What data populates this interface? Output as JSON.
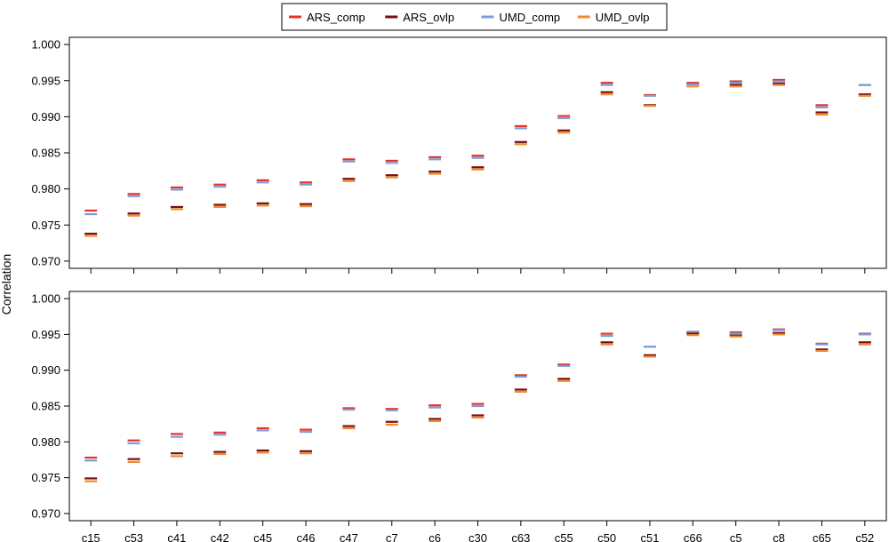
{
  "chart_data": {
    "type": "scatter",
    "ylabel": "Correlation",
    "legend_position": "top-center",
    "categories": [
      "c15",
      "c53",
      "c41",
      "c42",
      "c45",
      "c46",
      "c47",
      "c7",
      "c6",
      "c30",
      "c63",
      "c55",
      "c50",
      "c51",
      "c66",
      "c5",
      "c8",
      "c65",
      "c52"
    ],
    "series_styles": [
      {
        "name": "ARS_comp",
        "color": "#e8312b"
      },
      {
        "name": "ARS_ovlp",
        "color": "#7a0e0e"
      },
      {
        "name": "UMD_comp",
        "color": "#7b9fd9"
      },
      {
        "name": "UMD_ovlp",
        "color": "#f28a2e"
      }
    ],
    "panels": [
      {
        "ylim": [
          0.969,
          1.001
        ],
        "yticks": [
          "0.970",
          "0.975",
          "0.980",
          "0.985",
          "0.990",
          "0.995",
          "1.000"
        ],
        "series": [
          {
            "name": "ARS_comp",
            "values": [
              0.977,
              0.9793,
              0.9802,
              0.9806,
              0.9812,
              0.9809,
              0.9841,
              0.9839,
              0.9844,
              0.9846,
              0.9887,
              0.9901,
              0.9947,
              0.993,
              0.9947,
              0.9949,
              0.9951,
              0.9916,
              0.9944
            ]
          },
          {
            "name": "ARS_ovlp",
            "values": [
              0.9738,
              0.9766,
              0.9775,
              0.9778,
              0.978,
              0.9779,
              0.9814,
              0.9819,
              0.9824,
              0.983,
              0.9865,
              0.9881,
              0.9934,
              0.9916,
              0.9945,
              0.9944,
              0.9946,
              0.9906,
              0.9931
            ]
          },
          {
            "name": "UMD_comp",
            "values": [
              0.9765,
              0.979,
              0.9799,
              0.9803,
              0.9809,
              0.9806,
              0.9838,
              0.9836,
              0.9841,
              0.9843,
              0.9884,
              0.9898,
              0.9944,
              0.9929,
              0.9945,
              0.9947,
              0.9949,
              0.9913,
              0.9944
            ]
          },
          {
            "name": "UMD_ovlp",
            "values": [
              0.9735,
              0.9763,
              0.9772,
              0.9775,
              0.9777,
              0.9776,
              0.9811,
              0.9816,
              0.9821,
              0.9827,
              0.9862,
              0.9878,
              0.9931,
              0.9915,
              0.9942,
              0.9942,
              0.9944,
              0.9903,
              0.9929
            ]
          }
        ]
      },
      {
        "ylim": [
          0.969,
          1.001
        ],
        "yticks": [
          "0.970",
          "0.975",
          "0.980",
          "0.985",
          "0.990",
          "0.995",
          "1.000"
        ],
        "series": [
          {
            "name": "ARS_comp",
            "values": [
              0.9778,
              0.9802,
              0.9811,
              0.9813,
              0.9819,
              0.9817,
              0.9847,
              0.9846,
              0.9851,
              0.9853,
              0.9893,
              0.9908,
              0.9951,
              0.9933,
              0.9953,
              0.9953,
              0.9957,
              0.9937,
              0.9951
            ]
          },
          {
            "name": "ARS_ovlp",
            "values": [
              0.9749,
              0.9776,
              0.9784,
              0.9786,
              0.9788,
              0.9787,
              0.9822,
              0.9828,
              0.9832,
              0.9837,
              0.9873,
              0.9888,
              0.9939,
              0.9921,
              0.9951,
              0.9949,
              0.9952,
              0.9929,
              0.9939
            ]
          },
          {
            "name": "UMD_comp",
            "values": [
              0.9774,
              0.9798,
              0.9807,
              0.981,
              0.9816,
              0.9814,
              0.9845,
              0.9844,
              0.9848,
              0.985,
              0.9891,
              0.9906,
              0.9948,
              0.9933,
              0.9954,
              0.9951,
              0.9956,
              0.9936,
              0.995
            ]
          },
          {
            "name": "UMD_ovlp",
            "values": [
              0.9745,
              0.9772,
              0.978,
              0.9783,
              0.9785,
              0.9784,
              0.9819,
              0.9824,
              0.9829,
              0.9834,
              0.987,
              0.9885,
              0.9936,
              0.9919,
              0.9949,
              0.9947,
              0.995,
              0.9927,
              0.9936
            ]
          }
        ]
      }
    ]
  }
}
